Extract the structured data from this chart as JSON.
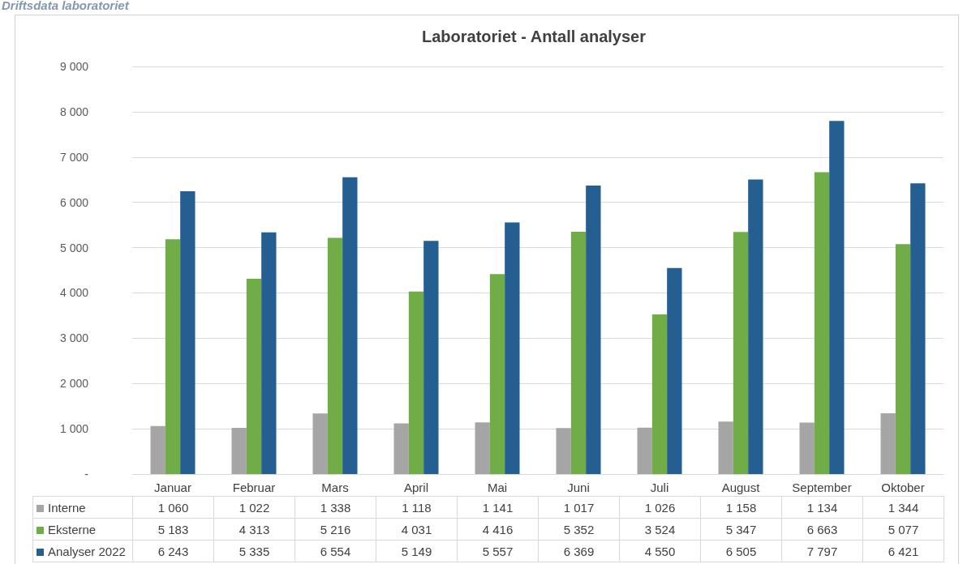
{
  "chart_data": {
    "type": "bar",
    "title": "Laboratoriet - Antall analyser",
    "annotations": [
      "Driftsdata laboratoriet"
    ],
    "categories": [
      "Januar",
      "Februar",
      "Mars",
      "April",
      "Mai",
      "Juni",
      "Juli",
      "August",
      "September",
      "Oktober"
    ],
    "series": [
      {
        "name": "Interne",
        "color": "#a5a5a5",
        "values": [
          1060,
          1022,
          1338,
          1118,
          1141,
          1017,
          1026,
          1158,
          1134,
          1344
        ]
      },
      {
        "name": "Eksterne",
        "color": "#70ad47",
        "values": [
          5183,
          4313,
          5216,
          4031,
          4416,
          5352,
          3524,
          5347,
          6663,
          5077
        ]
      },
      {
        "name": "Analyser 2022",
        "color": "#255e91",
        "values": [
          6243,
          5335,
          6554,
          5149,
          5557,
          6369,
          4550,
          6505,
          7797,
          6421
        ]
      }
    ],
    "ylim": [
      0,
      9000
    ],
    "yticks": [
      {
        "value": 0,
        "label": "-"
      },
      {
        "value": 1000,
        "label": "1 000"
      },
      {
        "value": 2000,
        "label": "2 000"
      },
      {
        "value": 3000,
        "label": "3 000"
      },
      {
        "value": 4000,
        "label": "4 000"
      },
      {
        "value": 5000,
        "label": "5 000"
      },
      {
        "value": 6000,
        "label": "6 000"
      },
      {
        "value": 7000,
        "label": "7 000"
      },
      {
        "value": 8000,
        "label": "8 000"
      },
      {
        "value": 9000,
        "label": "9 000"
      }
    ],
    "grid": "y",
    "legend": "bottom",
    "data_labels": true
  }
}
